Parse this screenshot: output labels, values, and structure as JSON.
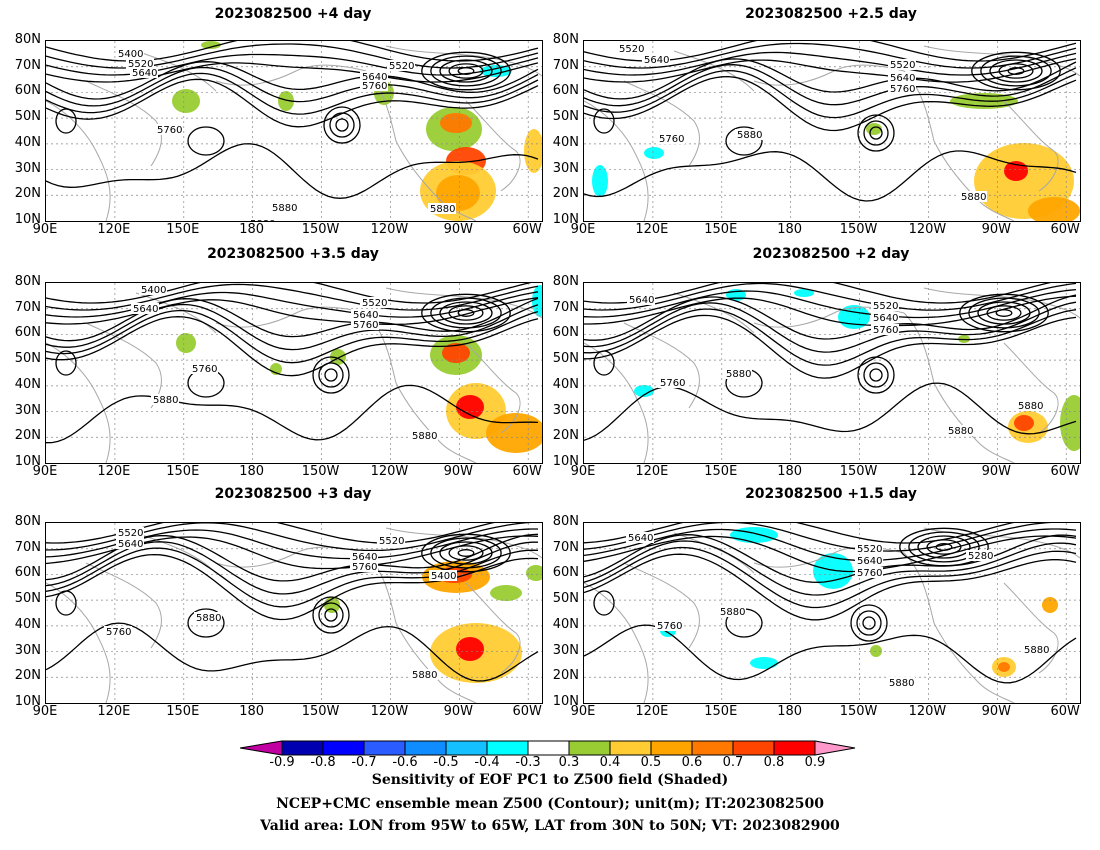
{
  "panels": [
    {
      "id": "p4",
      "title": "2023082500  +4 day"
    },
    {
      "id": "p25",
      "title": "2023082500  +2.5 day"
    },
    {
      "id": "p35",
      "title": "2023082500  +3.5 day"
    },
    {
      "id": "p2",
      "title": "2023082500  +2 day"
    },
    {
      "id": "p3",
      "title": "2023082500  +3 day"
    },
    {
      "id": "p15",
      "title": "2023082500  +1.5 day"
    }
  ],
  "lat_labels": [
    "80N",
    "70N",
    "60N",
    "50N",
    "40N",
    "30N",
    "20N",
    "10N"
  ],
  "lon_labels": [
    "90E",
    "120E",
    "150E",
    "180",
    "150W",
    "120W",
    "90W",
    "60W"
  ],
  "contour_labels": {
    "p4": [
      "5400",
      "5520",
      "5640",
      "5520",
      "5640",
      "5760",
      "5760",
      "5880",
      "5880",
      "5880"
    ],
    "p25": [
      "5520",
      "5640",
      "5520",
      "5640",
      "5760",
      "5760",
      "5880",
      "5880"
    ],
    "p35": [
      "5400",
      "5640",
      "5520",
      "5640",
      "5760",
      "5760",
      "5880",
      "5880"
    ],
    "p2": [
      "5640",
      "5520",
      "5640",
      "5760",
      "5760",
      "5880",
      "5880",
      "5880"
    ],
    "p3": [
      "5520",
      "5640",
      "5520",
      "5640",
      "5760",
      "5400",
      "5880",
      "5760",
      "5880"
    ],
    "p15": [
      "5640",
      "5520",
      "5640",
      "5760",
      "5280",
      "5880",
      "5760",
      "5880",
      "5880"
    ]
  },
  "colorbar": {
    "ticks": [
      "-0.9",
      "-0.8",
      "-0.7",
      "-0.6",
      "-0.5",
      "-0.4",
      "-0.3",
      "0.3",
      "0.4",
      "0.5",
      "0.6",
      "0.7",
      "0.8",
      "0.9"
    ],
    "colors": [
      "#c000a0",
      "#0000b0",
      "#0000ff",
      "#2a5cff",
      "#0f8cff",
      "#14c0ff",
      "#00ffff",
      "#ffffff",
      "#99cc33",
      "#ffcc33",
      "#ffa500",
      "#ff7800",
      "#ff4500",
      "#ff0000",
      "#ff99cc"
    ]
  },
  "captions": [
    "Sensitivity of EOF PC1 to Z500 field (Shaded)",
    "NCEP+CMC ensemble mean Z500 (Contour); unit(m); IT:2023082500",
    "Valid area: LON from 95W to 65W, LAT from 30N to 50N; VT: 2023082900"
  ]
}
